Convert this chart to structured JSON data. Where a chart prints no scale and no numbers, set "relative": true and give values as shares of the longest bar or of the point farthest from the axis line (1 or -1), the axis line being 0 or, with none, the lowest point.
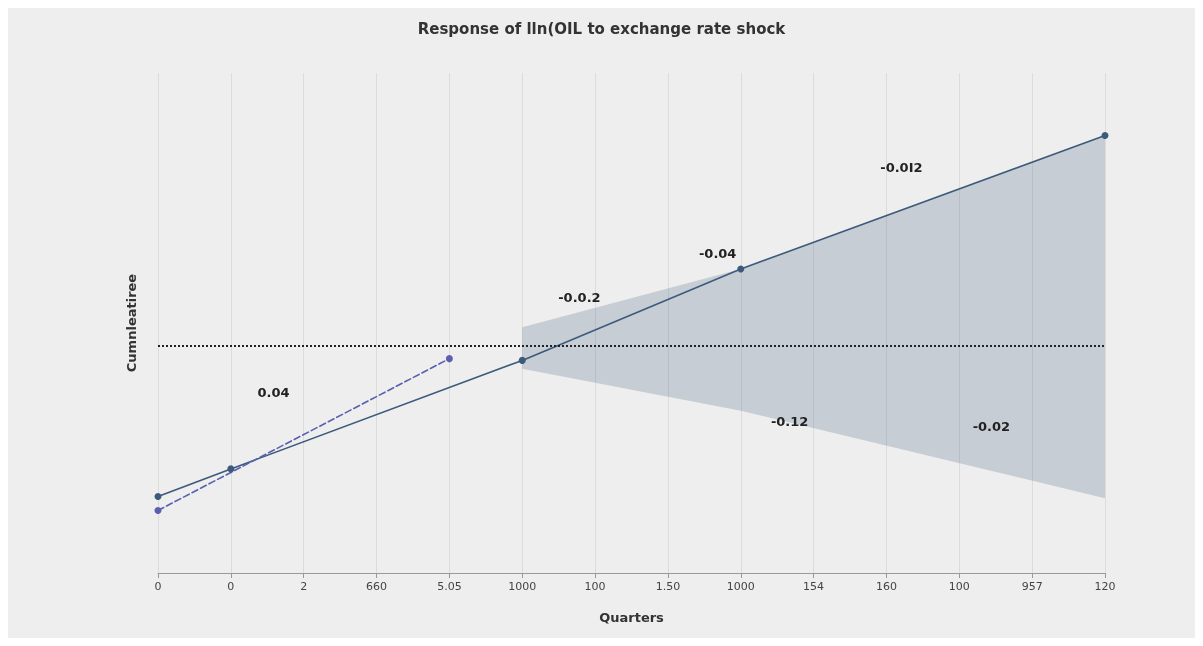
{
  "chart_data": {
    "type": "line",
    "title": "Response of lln(OIL to exchange rate shock",
    "xlabel": "Quarters",
    "ylabel": "Cumnleatiree",
    "relative": true,
    "categories": [
      "0",
      "0",
      "2",
      "660",
      "5.05",
      "1000",
      "100",
      "1.50",
      "1000",
      "154",
      "160",
      "100",
      "957",
      "120"
    ],
    "grid": true,
    "marker": "circle",
    "series": [
      {
        "color": "#3d5a7a",
        "line_style": "solid",
        "values": [
          0.175,
          0.238,
          null,
          null,
          null,
          0.486,
          null,
          null,
          0.695,
          null,
          null,
          null,
          null,
          1
        ],
        "lower": [
          null,
          null,
          null,
          null,
          null,
          0.467,
          null,
          null,
          0.371,
          null,
          null,
          null,
          null,
          0.171
        ],
        "upper": [
          null,
          null,
          null,
          null,
          null,
          0.562,
          null,
          null,
          0.695,
          null,
          null,
          null,
          null,
          1
        ]
      },
      {
        "color": "#5a5fb0",
        "line_style": "dashed",
        "values": [
          0.143,
          null,
          null,
          null,
          0.49,
          null,
          null,
          null,
          null,
          null,
          null,
          null,
          null,
          null
        ]
      }
    ],
    "ref_lines": [
      {
        "axis": "y",
        "value": 0.519,
        "color": "#222222",
        "line_style": "dotted"
      }
    ],
    "annotations": [
      "0.04",
      "-0.0.2",
      "-0.04",
      "-0.0I2",
      "-0.12",
      "-0.02"
    ]
  }
}
